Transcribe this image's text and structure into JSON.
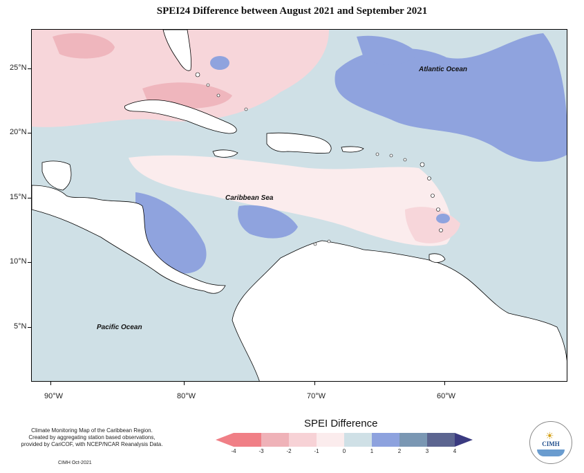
{
  "title": "SPEI24 Difference between August 2021 and September 2021",
  "lat_labels": [
    "25°N",
    "20°N",
    "15°N",
    "10°N",
    "5°N"
  ],
  "lon_labels": [
    "90°W",
    "80°W",
    "70°W",
    "60°W"
  ],
  "ocean_labels": {
    "atlantic": "Atlantic Ocean",
    "caribbean": "Caribbean Sea",
    "pacific": "Pacific Ocean"
  },
  "credit": {
    "line1": "Climate Monitoring Map of the Caribbean Region.",
    "line2": "Created by aggregating station based observations,",
    "line3": "provided by CariCOF, with NCEP/NCAR Reanalysis Data.",
    "stamp": "CIMH Oct-2021"
  },
  "legend": {
    "title": "SPEI Difference",
    "labels": [
      "-4",
      "-3",
      "-2",
      "-1",
      "0",
      "1",
      "2",
      "3",
      "4"
    ],
    "colors": [
      "#f07f86",
      "#efb2b8",
      "#f7d2d6",
      "#fbeced",
      "#cfe0e6",
      "#8da2de",
      "#7a97b3",
      "#5c6590",
      "#3a3a80"
    ]
  },
  "logo": {
    "text": "CIMH"
  },
  "colors": {
    "land": "#ffffff",
    "neutral": "#cfe0e6",
    "dry_light": "#f7d6da",
    "dry": "#efb6bd",
    "wet": "#8fa3de"
  }
}
